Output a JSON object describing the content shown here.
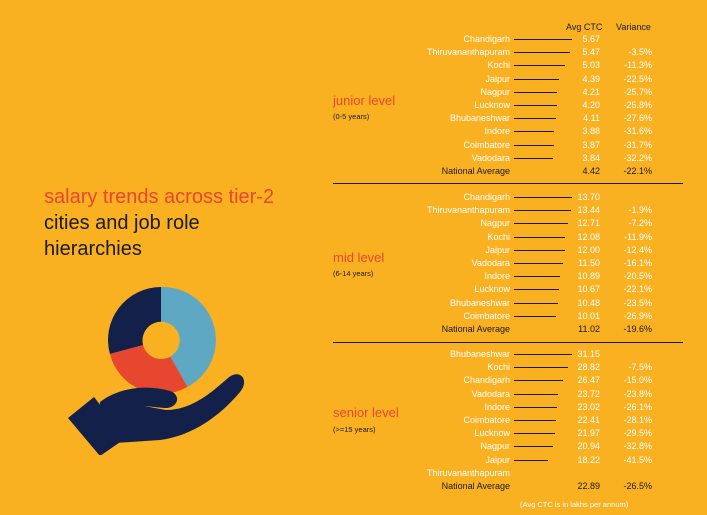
{
  "headline": {
    "accent": "salary trends across tier-2",
    "rest": "cities and job role hierarchies"
  },
  "columns": {
    "avg_ctc": "Avg CTC",
    "variance": "Variance"
  },
  "note": "(Avg CTC is in lakhs per annum)",
  "colors": {
    "background": "#F9B122",
    "accent": "#E8472F",
    "text_light": "#FFFFFF",
    "text_dark": "#1A1A1A",
    "pie_navy": "#13214A",
    "pie_blue": "#5FA8C4",
    "pie_red": "#E8472F"
  },
  "icons": [
    "donut-chart-icon",
    "hand-icon"
  ],
  "chart_data": [
    {
      "type": "table",
      "title": "junior level",
      "subtitle": "(0-5 years)",
      "rows": [
        {
          "city": "Chandigarh",
          "avg": "5.67",
          "variance": ""
        },
        {
          "city": "Thiruvananthapuram",
          "avg": "5.47",
          "variance": "-3.5%"
        },
        {
          "city": "Kochi",
          "avg": "5.03",
          "variance": "-11.3%"
        },
        {
          "city": "Jaipur",
          "avg": "4.39",
          "variance": "-22.5%"
        },
        {
          "city": "Nagpur",
          "avg": "4.21",
          "variance": "-25.7%"
        },
        {
          "city": "Lucknow",
          "avg": "4.20",
          "variance": "-25.8%"
        },
        {
          "city": "Bhubaneshwar",
          "avg": "4.11",
          "variance": "-27.6%"
        },
        {
          "city": "Indore",
          "avg": "3.88",
          "variance": "-31.6%"
        },
        {
          "city": "Coimbatore",
          "avg": "3.87",
          "variance": "-31.7%"
        },
        {
          "city": "Vadodara",
          "avg": "3.84",
          "variance": "-32.2%"
        },
        {
          "city": "National Average",
          "avg": "4.42",
          "variance": "-22.1%",
          "is_average": true
        }
      ]
    },
    {
      "type": "table",
      "title": "mid level",
      "subtitle": "(6-14 years)",
      "rows": [
        {
          "city": "Chandigarh",
          "avg": "13.70",
          "variance": ""
        },
        {
          "city": "Thiruvananthapuram",
          "avg": "13.44",
          "variance": "-1.9%"
        },
        {
          "city": "Nagpur",
          "avg": "12.71",
          "variance": "-7.2%"
        },
        {
          "city": "Kochi",
          "avg": "12.08",
          "variance": "-11.9%"
        },
        {
          "city": "Jaipur",
          "avg": "12.00",
          "variance": "-12.4%"
        },
        {
          "city": "Vadodara",
          "avg": "11.50",
          "variance": "-16.1%"
        },
        {
          "city": "Indore",
          "avg": "10.89",
          "variance": "-20.5%"
        },
        {
          "city": "Lucknow",
          "avg": "10.67",
          "variance": "-22.1%"
        },
        {
          "city": "Bhubaneshwar",
          "avg": "10.48",
          "variance": "-23.5%"
        },
        {
          "city": "Coimbatore",
          "avg": "10.01",
          "variance": "-26.9%"
        },
        {
          "city": "National Average",
          "avg": "11.02",
          "variance": "-19.6%",
          "is_average": true
        }
      ]
    },
    {
      "type": "table",
      "title": "senior level",
      "subtitle": "(>=15 years)",
      "rows": [
        {
          "city": "Bhubaneshwar",
          "avg": "31.15",
          "variance": ""
        },
        {
          "city": "Kochi",
          "avg": "28.82",
          "variance": "-7.5%"
        },
        {
          "city": "Chandigarh",
          "avg": "26.47",
          "variance": "-15.0%"
        },
        {
          "city": "Vadodara",
          "avg": "23.72",
          "variance": "-23.8%"
        },
        {
          "city": "Indore",
          "avg": "23.02",
          "variance": "-26.1%"
        },
        {
          "city": "Coimbatore",
          "avg": "22.41",
          "variance": "-28.1%"
        },
        {
          "city": "Lucknow",
          "avg": "21.97",
          "variance": "-29.5%"
        },
        {
          "city": "Nagpur",
          "avg": "20.94",
          "variance": "-32.8%"
        },
        {
          "city": "Jaipur",
          "avg": "18.22",
          "variance": "-41.5%"
        },
        {
          "city": "Thiruvananthapuram",
          "avg": "",
          "variance": ""
        },
        {
          "city": "National Average",
          "avg": "22.89",
          "variance": "-26.5%",
          "is_average": true
        }
      ]
    }
  ]
}
